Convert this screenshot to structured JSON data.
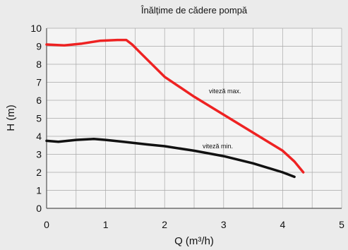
{
  "chart_data": {
    "type": "line",
    "title": "Înălțime de cădere pompă",
    "xlabel": "Q (m³/h)",
    "ylabel": "H (m)",
    "xlim": [
      0,
      5
    ],
    "ylim": [
      0,
      10
    ],
    "x_ticks": [
      "0",
      "1",
      "2",
      "3",
      "4",
      "5"
    ],
    "y_ticks": [
      "0",
      "1",
      "2",
      "3",
      "4",
      "5",
      "6",
      "7",
      "8",
      "9",
      "10"
    ],
    "grid": true,
    "series": [
      {
        "name": "viteză max.",
        "color": "#ee2222",
        "x": [
          0,
          0.3,
          0.6,
          0.9,
          1.2,
          1.35,
          1.45,
          1.6,
          2.0,
          2.5,
          3.0,
          3.5,
          4.0,
          4.2,
          4.35
        ],
        "y": [
          9.1,
          9.05,
          9.15,
          9.3,
          9.35,
          9.35,
          9.1,
          8.6,
          7.3,
          6.2,
          5.2,
          4.2,
          3.2,
          2.6,
          2.0
        ]
      },
      {
        "name": "viteză min.",
        "color": "#111111",
        "x": [
          0,
          0.2,
          0.5,
          0.8,
          1.0,
          1.3,
          1.7,
          2.0,
          2.5,
          3.0,
          3.5,
          4.0,
          4.2
        ],
        "y": [
          3.75,
          3.7,
          3.8,
          3.85,
          3.8,
          3.7,
          3.55,
          3.45,
          3.2,
          2.9,
          2.5,
          2.0,
          1.75
        ]
      }
    ]
  }
}
